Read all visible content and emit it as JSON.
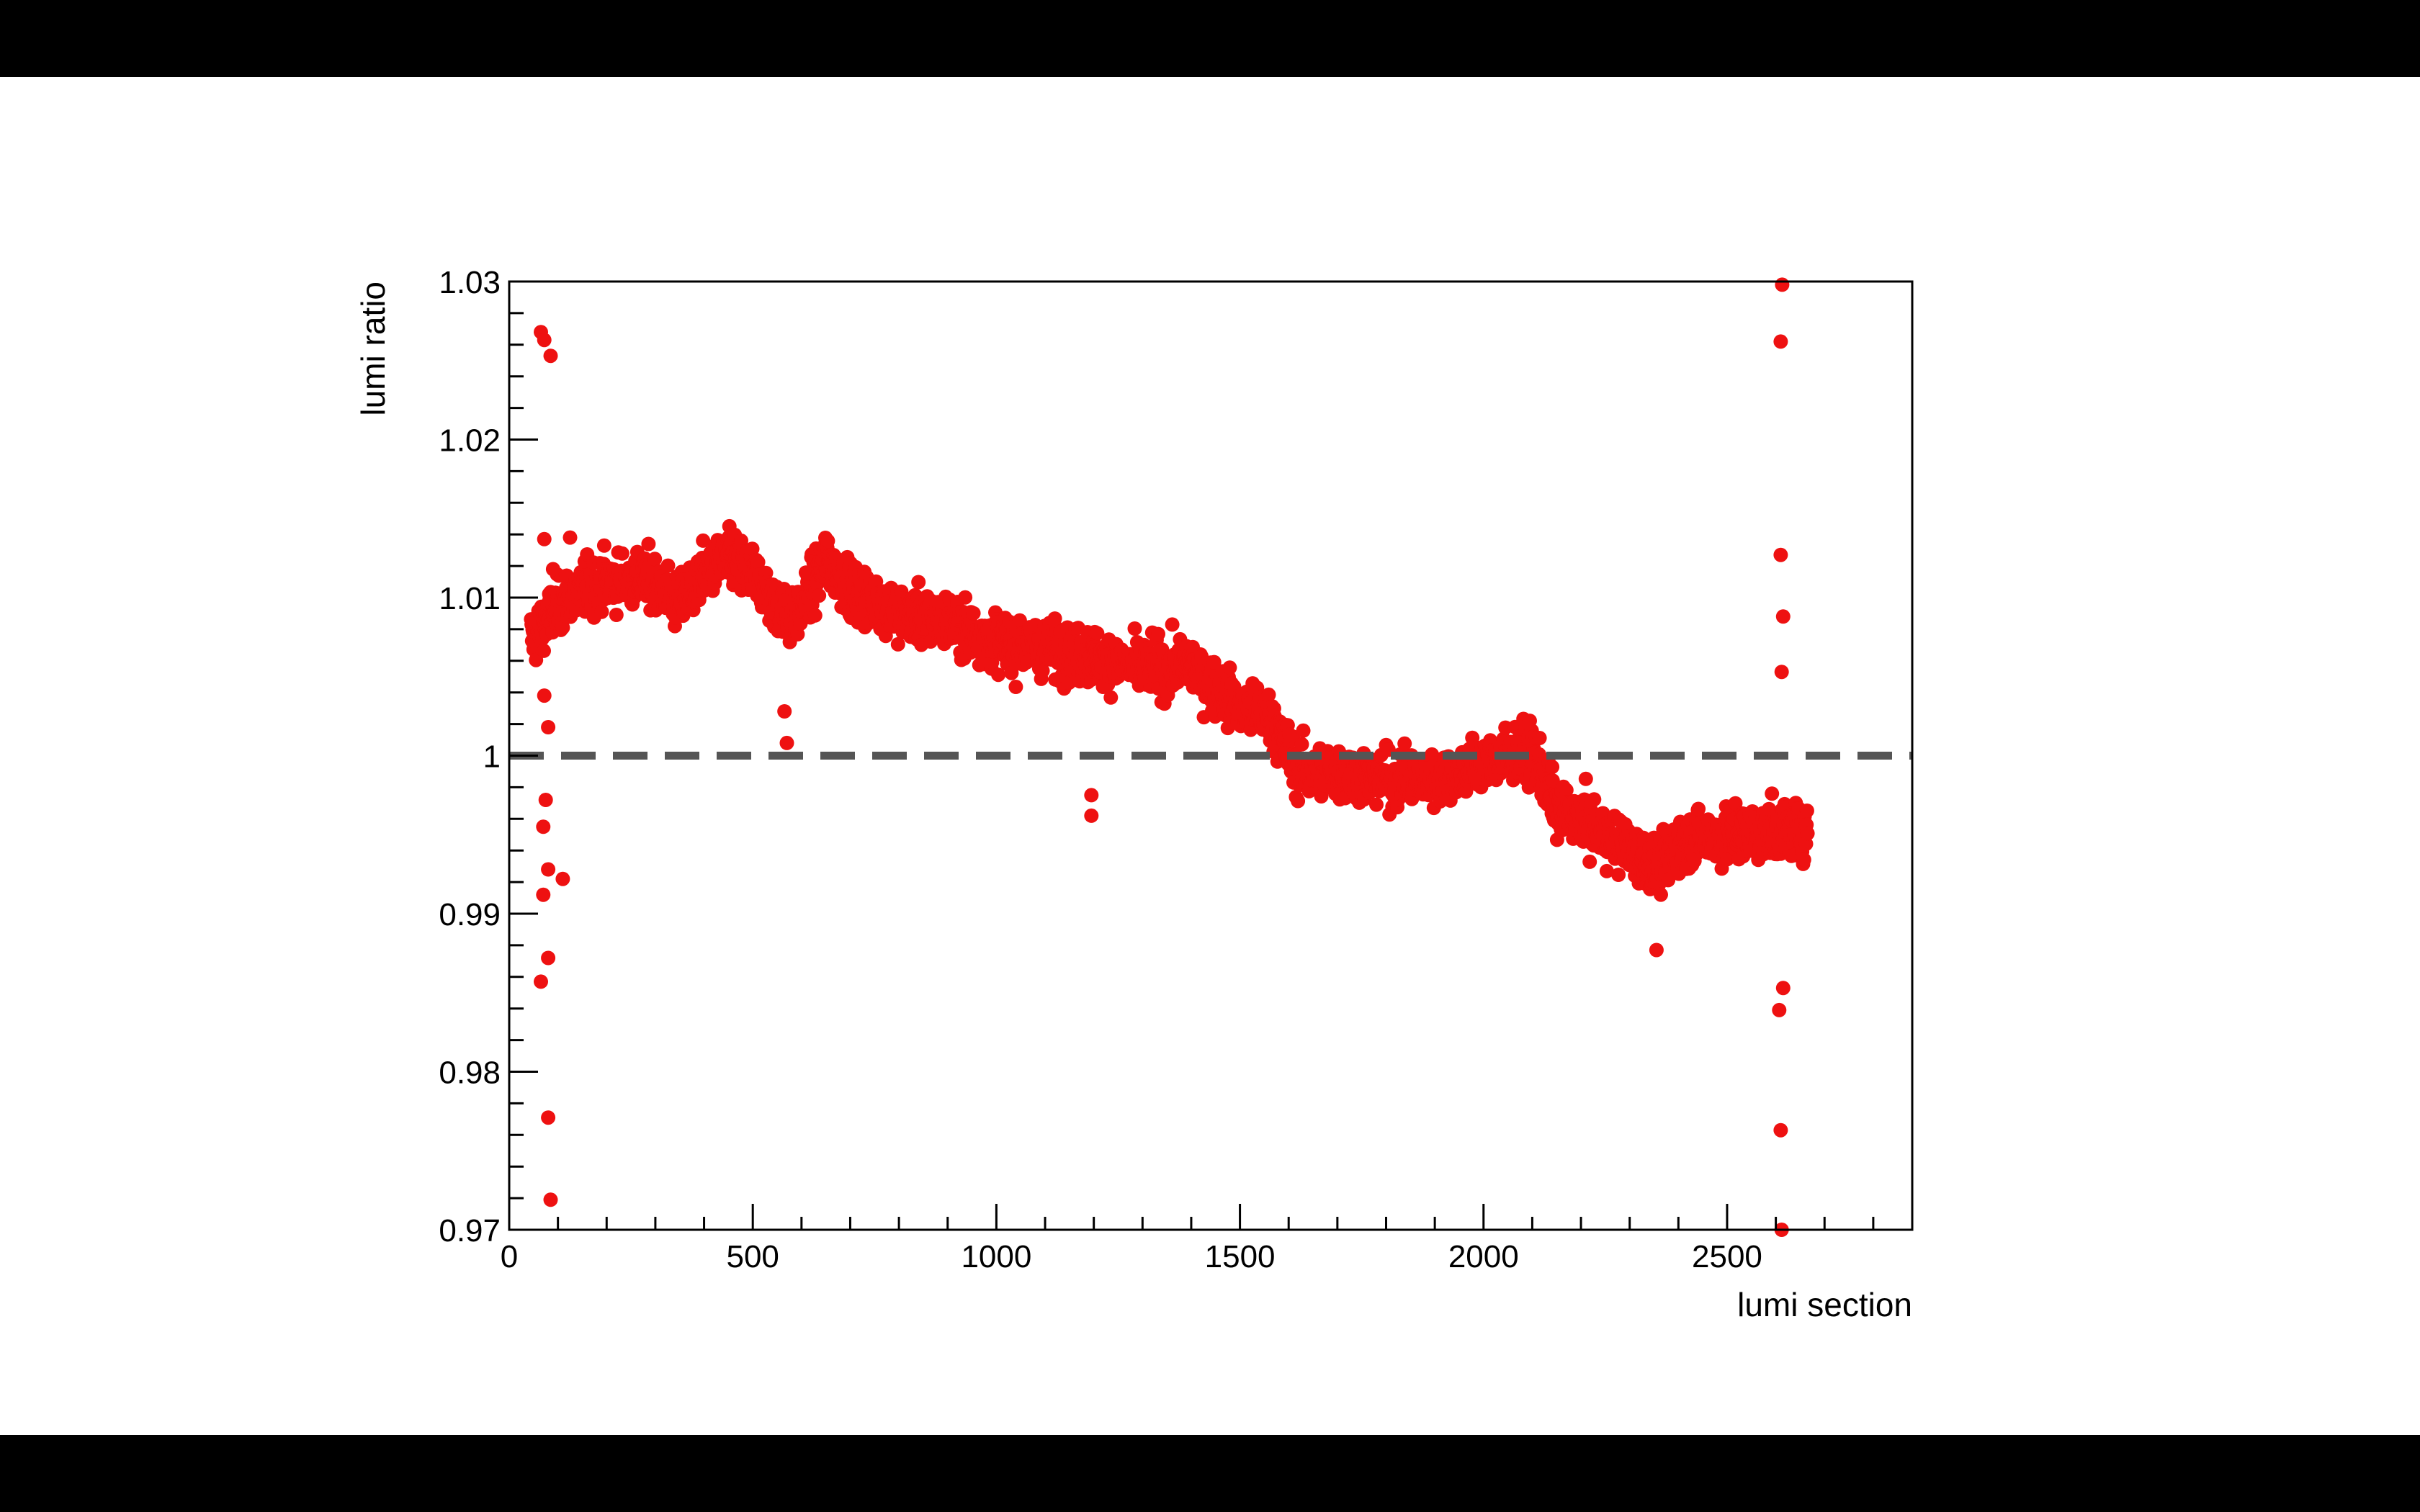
{
  "chart_data": {
    "type": "scatter",
    "title": "",
    "xlabel": "lumi section",
    "ylabel": "lumi ratio",
    "xlim": [
      0,
      2880
    ],
    "ylim": [
      0.97,
      1.03
    ],
    "xticks": [
      {
        "value": 0,
        "label": "0"
      },
      {
        "value": 500,
        "label": "500"
      },
      {
        "value": 1000,
        "label": "1000"
      },
      {
        "value": 1500,
        "label": "1500"
      },
      {
        "value": 2000,
        "label": "2000"
      },
      {
        "value": 2500,
        "label": "2500"
      }
    ],
    "yticks": [
      {
        "value": 0.97,
        "label": "0.97"
      },
      {
        "value": 0.98,
        "label": "0.98"
      },
      {
        "value": 0.99,
        "label": "0.99"
      },
      {
        "value": 1.0,
        "label": "1"
      },
      {
        "value": 1.01,
        "label": "1.01"
      },
      {
        "value": 1.02,
        "label": "1.02"
      },
      {
        "value": 1.03,
        "label": "1.03"
      }
    ],
    "reference_line": {
      "y": 1.0,
      "style": "dashed",
      "color": "#555555"
    },
    "marker_color": "#ee1111",
    "grid": false,
    "legend": "none",
    "series": [
      {
        "trend": [
          [
            50,
            1.0075
          ],
          [
            100,
            1.0095
          ],
          [
            150,
            1.0105
          ],
          [
            200,
            1.011
          ],
          [
            250,
            1.0112
          ],
          [
            300,
            1.011
          ],
          [
            350,
            1.0095
          ],
          [
            400,
            1.0115
          ],
          [
            450,
            1.0125
          ],
          [
            500,
            1.0115
          ],
          [
            550,
            1.0095
          ],
          [
            580,
            1.0085
          ],
          [
            620,
            1.0105
          ],
          [
            650,
            1.0125
          ],
          [
            700,
            1.0105
          ],
          [
            800,
            1.009
          ],
          [
            900,
            1.0085
          ],
          [
            1000,
            1.0072
          ],
          [
            1100,
            1.0068
          ],
          [
            1200,
            1.0062
          ],
          [
            1300,
            1.0055
          ],
          [
            1400,
            1.0057
          ],
          [
            1500,
            1.003
          ],
          [
            1560,
            1.0025
          ],
          [
            1620,
            0.999
          ],
          [
            1700,
            0.999
          ],
          [
            1800,
            0.9985
          ],
          [
            1900,
            0.9985
          ],
          [
            2000,
            0.9995
          ],
          [
            2100,
            1.0003
          ],
          [
            2150,
            0.9965
          ],
          [
            2200,
            0.996
          ],
          [
            2300,
            0.994
          ],
          [
            2360,
            0.9928
          ],
          [
            2400,
            0.9945
          ],
          [
            2500,
            0.995
          ],
          [
            2600,
            0.9952
          ],
          [
            2660,
            0.9955
          ]
        ],
        "x_range": [
          45,
          2665
        ],
        "spread": 0.0012,
        "outliers": [
          {
            "x": 65,
            "y": 1.0268
          },
          {
            "x": 72,
            "y": 1.0263
          },
          {
            "x": 85,
            "y": 1.0253
          },
          {
            "x": 72,
            "y": 1.0137
          },
          {
            "x": 90,
            "y": 1.0118
          },
          {
            "x": 125,
            "y": 1.0138
          },
          {
            "x": 72,
            "y": 1.0038
          },
          {
            "x": 80,
            "y": 1.0018
          },
          {
            "x": 75,
            "y": 0.9972
          },
          {
            "x": 70,
            "y": 0.9955
          },
          {
            "x": 80,
            "y": 0.9928
          },
          {
            "x": 110,
            "y": 0.9922
          },
          {
            "x": 70,
            "y": 0.9912
          },
          {
            "x": 80,
            "y": 0.9872
          },
          {
            "x": 65,
            "y": 0.9857
          },
          {
            "x": 80,
            "y": 0.9771
          },
          {
            "x": 85,
            "y": 0.9719
          },
          {
            "x": 565,
            "y": 1.0028
          },
          {
            "x": 570,
            "y": 1.0008
          },
          {
            "x": 1195,
            "y": 0.9975
          },
          {
            "x": 1195,
            "y": 0.9962
          },
          {
            "x": 2355,
            "y": 0.9877
          },
          {
            "x": 2613,
            "y": 1.0298
          },
          {
            "x": 2610,
            "y": 1.0262
          },
          {
            "x": 2610,
            "y": 1.0127
          },
          {
            "x": 2615,
            "y": 1.0088
          },
          {
            "x": 2612,
            "y": 1.0053
          },
          {
            "x": 2615,
            "y": 0.9853
          },
          {
            "x": 2607,
            "y": 0.9839
          },
          {
            "x": 2610,
            "y": 0.9763
          },
          {
            "x": 2612,
            "y": 0.97
          }
        ]
      }
    ]
  }
}
